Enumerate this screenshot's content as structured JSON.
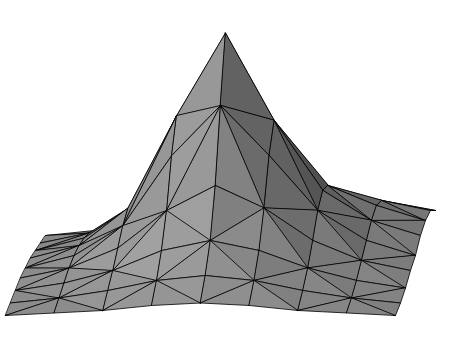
{
  "chart_data": {
    "type": "surface",
    "x": [
      -1,
      -0.75,
      -0.5,
      -0.25,
      0,
      0.25,
      0.5,
      0.75,
      1
    ],
    "y": [
      -1,
      -0.75,
      -0.5,
      -0.25,
      0,
      0.25,
      0.5,
      0.75,
      1
    ],
    "z": [
      [
        0.02,
        0.03,
        0.04,
        0.06,
        0.07,
        0.06,
        0.04,
        0.03,
        0.02
      ],
      [
        0.03,
        0.05,
        0.08,
        0.12,
        0.14,
        0.12,
        0.08,
        0.05,
        0.03
      ],
      [
        0.04,
        0.07,
        0.12,
        0.2,
        0.24,
        0.2,
        0.13,
        0.08,
        0.05
      ],
      [
        0.05,
        0.09,
        0.17,
        0.32,
        0.42,
        0.33,
        0.2,
        0.12,
        0.08
      ],
      [
        0.05,
        0.1,
        0.22,
        0.5,
        0.7,
        0.5,
        0.28,
        0.16,
        0.1
      ],
      [
        0.05,
        0.1,
        0.25,
        0.62,
        0.95,
        0.6,
        0.32,
        0.2,
        0.14
      ],
      [
        0.04,
        0.09,
        0.22,
        0.5,
        0.75,
        0.48,
        0.3,
        0.22,
        0.16
      ],
      [
        0.03,
        0.07,
        0.15,
        0.3,
        0.4,
        0.3,
        0.24,
        0.2,
        0.16
      ],
      [
        0.02,
        0.04,
        0.08,
        0.14,
        0.18,
        0.16,
        0.14,
        0.14,
        0.12
      ]
    ],
    "color": "#808080",
    "grid": false,
    "tick_labels": false
  }
}
